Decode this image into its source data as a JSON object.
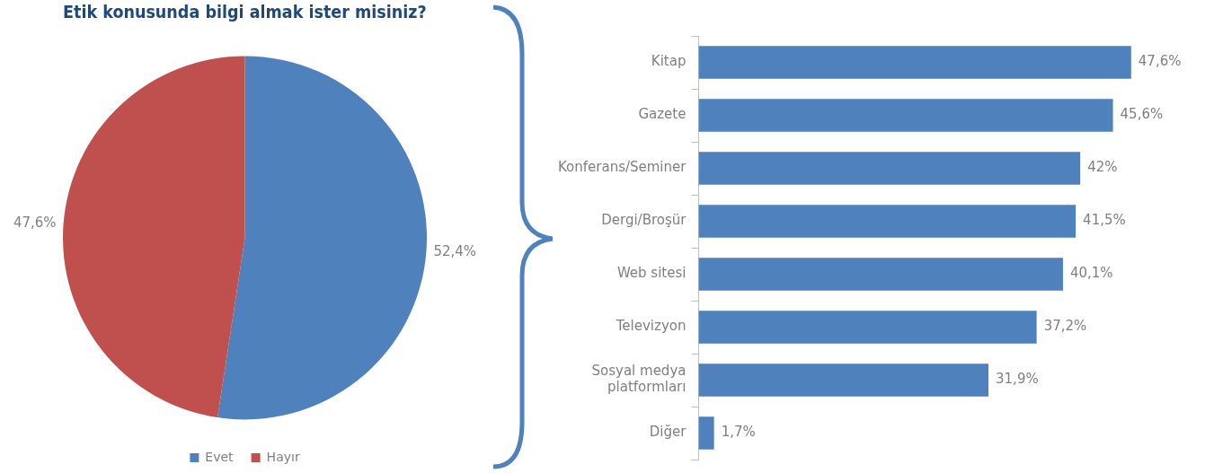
{
  "chart_data": [
    {
      "type": "pie",
      "title": "Etik konusunda bilgi almak ister misiniz?",
      "categories": [
        "Evet",
        "Hayır"
      ],
      "values": [
        52.4,
        47.6
      ],
      "colors": [
        "#4f81bd",
        "#c0504d"
      ],
      "value_labels": [
        "52,4%",
        "47,6%"
      ],
      "legend": "bottom"
    },
    {
      "type": "bar",
      "orientation": "horizontal",
      "categories": [
        "Kitap",
        "Gazete",
        "Konferans/Seminer",
        "Dergi/Broşür",
        "Web sitesi",
        "Televizyon",
        "Sosyal medya platformları",
        "Diğer"
      ],
      "values": [
        47.6,
        45.6,
        42,
        41.5,
        40.1,
        37.2,
        31.9,
        1.7
      ],
      "color": "#4f81bd",
      "value_labels": [
        "47,6%",
        "45,6%",
        "42%",
        "41,5%",
        "40,1%",
        "37,2%",
        "31,9%",
        "1,7%"
      ],
      "grid": false,
      "legend": false
    }
  ]
}
